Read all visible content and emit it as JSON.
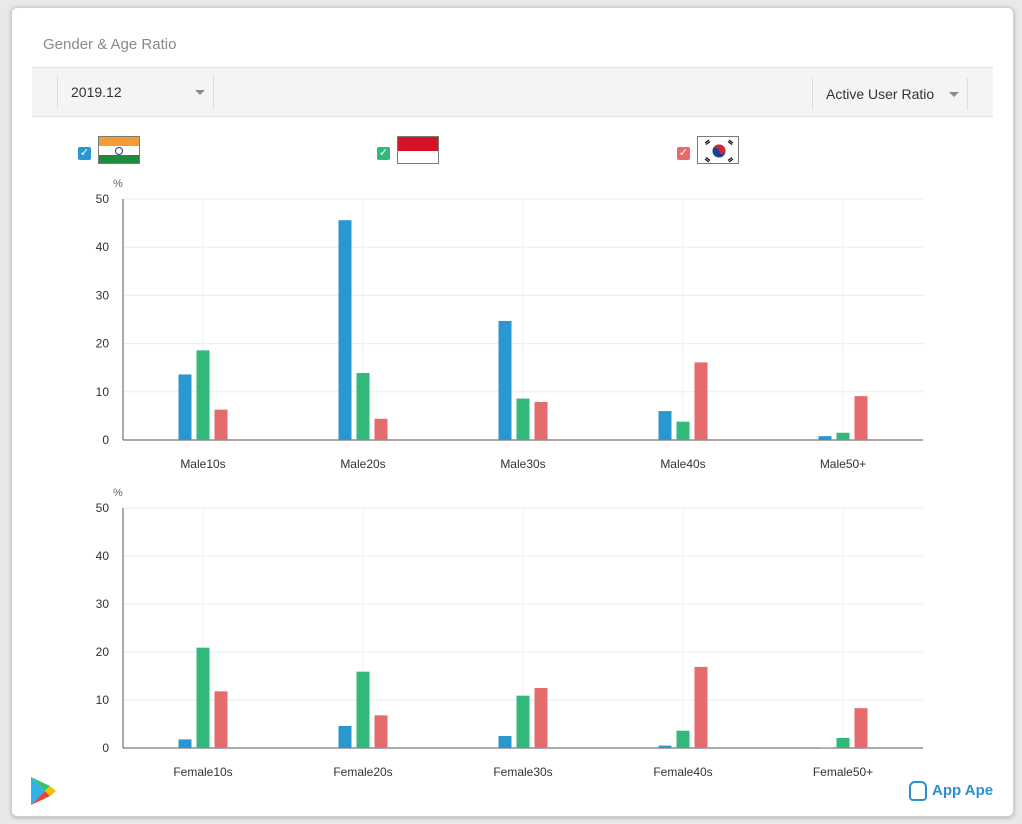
{
  "panel": {
    "title": "Gender & Age Ratio",
    "date_select": "2019.12",
    "metric_select": "Active User Ratio"
  },
  "legend": [
    {
      "flag_icon": "india-flag-icon",
      "color": "#2a98d0",
      "checked": true
    },
    {
      "flag_icon": "indonesia-flag-icon",
      "color": "#32b97a",
      "checked": true
    },
    {
      "flag_icon": "south-korea-flag-icon",
      "color": "#e56b6c",
      "checked": true
    }
  ],
  "brand": {
    "name": "App Ape",
    "store_icon": "google-play-icon"
  },
  "chart_data": [
    {
      "type": "bar",
      "unit": "%",
      "ylim": [
        0,
        50
      ],
      "yticks": [
        0,
        10,
        20,
        30,
        40,
        50
      ],
      "grid": true,
      "categories": [
        "Male10s",
        "Male20s",
        "Male30s",
        "Male40s",
        "Male50+"
      ],
      "series": [
        {
          "color": "#2a98d0",
          "values": [
            13.6,
            45.6,
            24.7,
            6.0,
            0.8
          ]
        },
        {
          "color": "#32b97a",
          "values": [
            18.6,
            13.9,
            8.6,
            3.8,
            1.5
          ]
        },
        {
          "color": "#e56b6c",
          "values": [
            6.3,
            4.4,
            7.9,
            16.1,
            9.1
          ]
        }
      ]
    },
    {
      "type": "bar",
      "unit": "%",
      "ylim": [
        0,
        50
      ],
      "yticks": [
        0,
        10,
        20,
        30,
        40,
        50
      ],
      "grid": true,
      "categories": [
        "Female10s",
        "Female20s",
        "Female30s",
        "Female40s",
        "Female50+"
      ],
      "series": [
        {
          "color": "#2a98d0",
          "values": [
            1.8,
            4.6,
            2.5,
            0.5,
            0.1
          ]
        },
        {
          "color": "#32b97a",
          "values": [
            20.9,
            15.9,
            10.9,
            3.6,
            2.1
          ]
        },
        {
          "color": "#e56b6c",
          "values": [
            11.8,
            6.8,
            12.5,
            16.9,
            8.3
          ]
        }
      ]
    }
  ]
}
